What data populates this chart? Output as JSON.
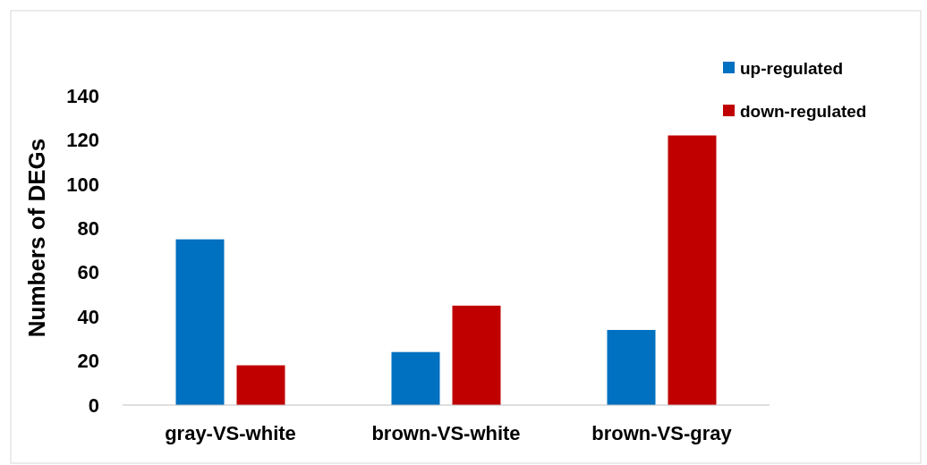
{
  "chart_data": {
    "type": "bar",
    "ylabel": "Numbers of DEGs",
    "categories": [
      "gray-VS-white",
      "brown-VS-white",
      "brown-VS-gray"
    ],
    "series": [
      {
        "name": "up-regulated",
        "color": "#0070c0",
        "values": [
          75,
          24,
          34
        ]
      },
      {
        "name": "down-regulated",
        "color": "#c00000",
        "values": [
          18,
          45,
          122
        ]
      }
    ],
    "ylim": [
      0,
      140
    ],
    "yticks": [
      0,
      20,
      40,
      60,
      80,
      100,
      120,
      140
    ],
    "grid": false,
    "legend": "top right"
  }
}
